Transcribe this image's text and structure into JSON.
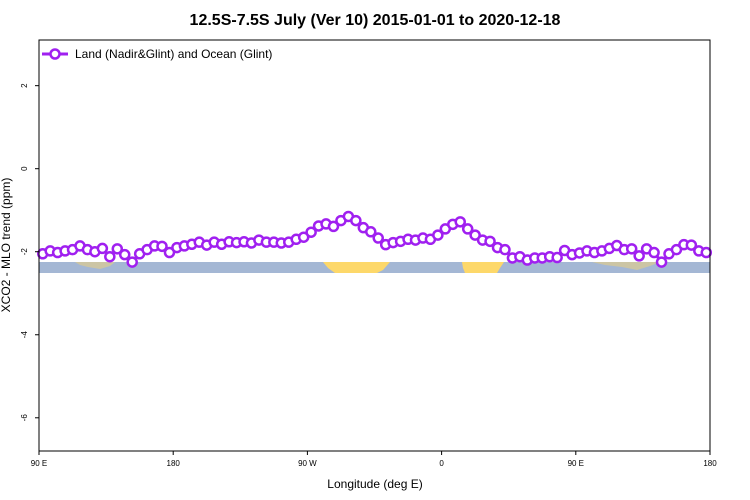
{
  "chart_data": {
    "type": "line",
    "title": "12.5S-7.5S July (Ver 10)   2015-01-01 to 2020-12-18",
    "xlabel": "Longitude (deg E)",
    "ylabel": "XCO2 - MLO trend (ppm)",
    "xlim": [
      90,
      450
    ],
    "ylim": [
      -6.8,
      3.1
    ],
    "x_ticks": [
      {
        "value": 90,
        "label": "90 E"
      },
      {
        "value": 162,
        "label": "180"
      },
      {
        "value": 234,
        "label": "90 W"
      },
      {
        "value": 306,
        "label": "0"
      },
      {
        "value": 378,
        "label": "90 E"
      },
      {
        "value": 450,
        "label": "180"
      }
    ],
    "y_ticks": [
      {
        "value": 2,
        "label": "2"
      },
      {
        "value": 0,
        "label": "0"
      },
      {
        "value": -2,
        "label": "-2"
      },
      {
        "value": -4,
        "label": "-4"
      },
      {
        "value": -6,
        "label": "-6"
      }
    ],
    "grid": false,
    "legend_position": "top-left",
    "series": [
      {
        "name": "Land (Nadir&Glint) and Ocean (Glint)",
        "color": "#a020f0",
        "x": [
          92,
          96,
          100,
          104,
          108,
          112,
          116,
          120,
          124,
          128,
          132,
          136,
          140,
          144,
          148,
          152,
          156,
          160,
          164,
          168,
          172,
          176,
          180,
          184,
          188,
          192,
          196,
          200,
          204,
          208,
          212,
          216,
          220,
          224,
          228,
          232,
          236,
          240,
          244,
          248,
          252,
          256,
          260,
          264,
          268,
          272,
          276,
          280,
          284,
          288,
          292,
          296,
          300,
          304,
          308,
          312,
          316,
          320,
          324,
          328,
          332,
          336,
          340,
          344,
          348,
          352,
          356,
          360,
          364,
          368,
          372,
          376,
          380,
          384,
          388,
          392,
          396,
          400,
          404,
          408,
          412,
          416,
          420,
          424,
          428,
          432,
          436,
          440,
          444,
          448
        ],
        "y": [
          -2.05,
          -1.98,
          -2.02,
          -1.98,
          -1.95,
          -1.86,
          -1.95,
          -2.0,
          -1.92,
          -2.12,
          -1.93,
          -2.07,
          -2.25,
          -2.05,
          -1.95,
          -1.86,
          -1.87,
          -2.02,
          -1.9,
          -1.86,
          -1.82,
          -1.77,
          -1.84,
          -1.77,
          -1.82,
          -1.76,
          -1.78,
          -1.76,
          -1.79,
          -1.72,
          -1.77,
          -1.77,
          -1.79,
          -1.77,
          -1.7,
          -1.65,
          -1.53,
          -1.38,
          -1.33,
          -1.39,
          -1.25,
          -1.15,
          -1.25,
          -1.42,
          -1.52,
          -1.67,
          -1.83,
          -1.78,
          -1.75,
          -1.7,
          -1.72,
          -1.67,
          -1.7,
          -1.6,
          -1.45,
          -1.34,
          -1.28,
          -1.45,
          -1.6,
          -1.72,
          -1.75,
          -1.9,
          -1.95,
          -2.15,
          -2.12,
          -2.2,
          -2.15,
          -2.15,
          -2.12,
          -2.14,
          -1.97,
          -2.07,
          -2.03,
          -1.98,
          -2.02,
          -1.98,
          -1.92,
          -1.85,
          -1.95,
          -1.93,
          -2.1,
          -1.93,
          -2.02,
          -2.25,
          -2.05,
          -1.95,
          -1.83,
          -1.84,
          -1.98,
          -2.02
        ]
      }
    ]
  }
}
